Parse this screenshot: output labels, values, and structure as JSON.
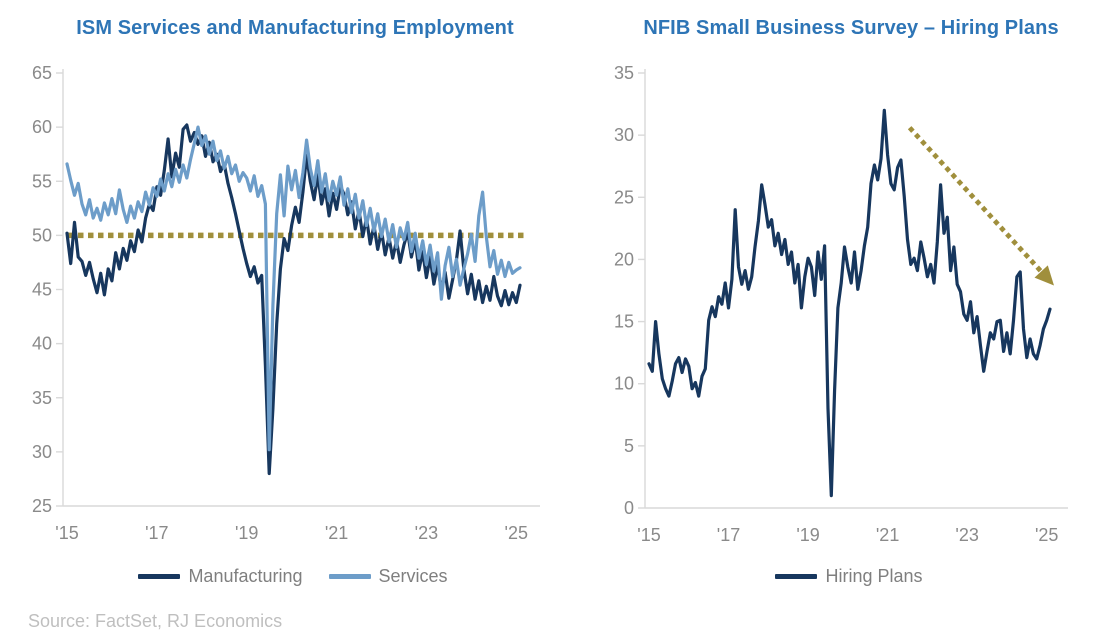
{
  "source_note": "Source: FactSet, RJ Economics",
  "colors": {
    "title_blue": "#2E75B6",
    "manufacturing_navy": "#17375E",
    "services_blue": "#6D9DC9",
    "hiring_navy": "#17375E",
    "gold_annotation": "#A08F3C",
    "axis_line": "#D9D9D9",
    "tick_label_gray": "#8A8A8A",
    "legend_text_gray": "#7F7F7F",
    "source_gray": "#BFBFBF"
  },
  "chart_data": [
    {
      "type": "line",
      "title": "ISM Services and Manufacturing Employment",
      "x_tick_labels": [
        "'15",
        "'17",
        "'19",
        "'21",
        "'23",
        "'25"
      ],
      "x_tick_indices": [
        0,
        24,
        48,
        72,
        96,
        120
      ],
      "n_points": 122,
      "ylim": [
        25,
        65
      ],
      "y_ticks": [
        25,
        30,
        35,
        40,
        45,
        50,
        55,
        60,
        65
      ],
      "grid": false,
      "legend_position": "bottom",
      "reference_line": {
        "value": 50,
        "style": "dotted",
        "color": "#A08F3C"
      },
      "series": [
        {
          "name": "Manufacturing",
          "color": "#17375E",
          "values": [
            50.2,
            47.4,
            51.2,
            48.0,
            47.6,
            46.3,
            47.5,
            46.0,
            44.7,
            46.5,
            44.5,
            46.9,
            45.8,
            48.4,
            46.9,
            48.8,
            47.7,
            49.5,
            48.5,
            50.5,
            49.4,
            51.6,
            52.9,
            52.3,
            54.5,
            53.7,
            56.0,
            58.9,
            55.4,
            57.6,
            56.3,
            59.8,
            60.2,
            58.7,
            59.5,
            58.4,
            59.2,
            57.3,
            58.6,
            56.8,
            57.5,
            55.9,
            56.6,
            54.8,
            53.5,
            52.0,
            50.4,
            48.8,
            47.4,
            46.2,
            47.1,
            45.6,
            46.3,
            38.0,
            28.0,
            34.0,
            41.8,
            46.9,
            49.7,
            48.6,
            50.9,
            52.6,
            51.2,
            54.0,
            57.4,
            55.0,
            53.3,
            55.6,
            52.9,
            54.3,
            51.8,
            53.9,
            52.4,
            54.6,
            53.8,
            51.9,
            53.1,
            50.6,
            52.3,
            49.9,
            51.6,
            49.2,
            50.9,
            48.7,
            50.4,
            48.2,
            49.8,
            47.9,
            49.5,
            47.5,
            49.1,
            50.3,
            48.0,
            49.6,
            46.8,
            48.5,
            46.1,
            48.0,
            45.5,
            47.3,
            44.9,
            46.6,
            44.2,
            45.9,
            47.7,
            50.4,
            46.9,
            44.6,
            46.4,
            44.1,
            45.8,
            43.8,
            45.3,
            44.0,
            46.2,
            44.4,
            43.5,
            44.9,
            43.6,
            44.7,
            43.8,
            45.4
          ]
        },
        {
          "name": "Services",
          "color": "#6D9DC9",
          "values": [
            56.6,
            55.1,
            53.7,
            54.8,
            52.9,
            51.9,
            53.3,
            51.6,
            52.5,
            51.4,
            53.0,
            51.9,
            53.4,
            52.0,
            54.2,
            52.4,
            51.2,
            52.7,
            51.6,
            53.1,
            52.2,
            54.0,
            52.8,
            54.4,
            53.6,
            55.2,
            54.1,
            55.7,
            54.5,
            56.1,
            54.9,
            56.5,
            55.3,
            57.0,
            58.5,
            60.0,
            58.3,
            59.2,
            57.5,
            58.7,
            56.9,
            57.8,
            56.2,
            57.3,
            55.7,
            56.5,
            55.0,
            55.8,
            55.3,
            54.1,
            55.5,
            53.6,
            54.6,
            52.9,
            30.2,
            43.5,
            52.0,
            55.6,
            51.8,
            56.4,
            54.2,
            56.0,
            53.5,
            55.8,
            58.8,
            56.2,
            54.6,
            56.9,
            54.0,
            55.7,
            53.2,
            55.0,
            53.7,
            55.4,
            52.8,
            54.3,
            52.1,
            53.8,
            51.6,
            53.2,
            50.9,
            52.5,
            50.4,
            52.0,
            49.9,
            51.5,
            49.4,
            51.0,
            48.9,
            50.7,
            49.6,
            51.2,
            48.5,
            50.2,
            47.9,
            49.5,
            47.3,
            49.1,
            46.7,
            48.4,
            44.1,
            47.2,
            48.9,
            46.2,
            47.8,
            45.4,
            46.9,
            48.3,
            50.1,
            47.6,
            51.8,
            54.0,
            49.9,
            47.1,
            48.6,
            46.4,
            47.7,
            46.2,
            47.5,
            46.5,
            46.8,
            47.0
          ]
        }
      ]
    },
    {
      "type": "line",
      "title": "NFIB Small Business Survey – Hiring Plans",
      "x_tick_labels": [
        "'15",
        "'17",
        "'19",
        "'21",
        "'23",
        "'25"
      ],
      "x_tick_indices": [
        0,
        24,
        48,
        72,
        96,
        120
      ],
      "n_points": 122,
      "ylim": [
        0,
        35
      ],
      "y_ticks": [
        0,
        5,
        10,
        15,
        20,
        25,
        30,
        35
      ],
      "grid": false,
      "legend_position": "bottom",
      "annotation_arrow": {
        "x1_frac": 0.65,
        "y1": 30.6,
        "x2_frac": 1.01,
        "y2": 17.9,
        "style": "dotted",
        "color": "#A08F3C"
      },
      "series": [
        {
          "name": "Hiring Plans",
          "color": "#17375E",
          "values": [
            11.6,
            11.0,
            15.0,
            12.4,
            10.4,
            9.6,
            9.0,
            10.2,
            11.6,
            12.1,
            10.9,
            12.0,
            11.4,
            9.6,
            10.1,
            9.0,
            10.6,
            11.2,
            15.1,
            16.2,
            15.4,
            17.0,
            16.4,
            18.1,
            16.1,
            18.4,
            24.0,
            19.4,
            18.0,
            19.1,
            17.6,
            18.6,
            21.0,
            23.1,
            26.0,
            24.4,
            22.6,
            23.2,
            21.1,
            22.1,
            20.4,
            21.6,
            19.6,
            20.6,
            18.1,
            19.6,
            16.1,
            18.6,
            20.1,
            19.4,
            17.1,
            20.6,
            18.4,
            21.1,
            8.0,
            1.0,
            9.5,
            16.1,
            18.1,
            21.0,
            19.4,
            18.1,
            20.6,
            17.6,
            19.1,
            21.1,
            22.6,
            26.1,
            27.6,
            26.4,
            28.1,
            32.0,
            28.4,
            26.1,
            25.6,
            27.4,
            28.0,
            25.1,
            21.6,
            19.6,
            20.1,
            19.1,
            21.4,
            20.1,
            18.6,
            19.6,
            18.1,
            21.4,
            26.0,
            22.1,
            23.4,
            19.1,
            21.0,
            18.0,
            17.4,
            15.6,
            15.1,
            16.6,
            14.1,
            15.4,
            13.1,
            11.0,
            12.6,
            14.1,
            13.6,
            15.0,
            15.1,
            12.6,
            14.1,
            12.4,
            15.1,
            18.6,
            19.0,
            14.4,
            12.1,
            13.6,
            12.4,
            12.0,
            13.1,
            14.4,
            15.1,
            16.0
          ]
        }
      ]
    }
  ]
}
